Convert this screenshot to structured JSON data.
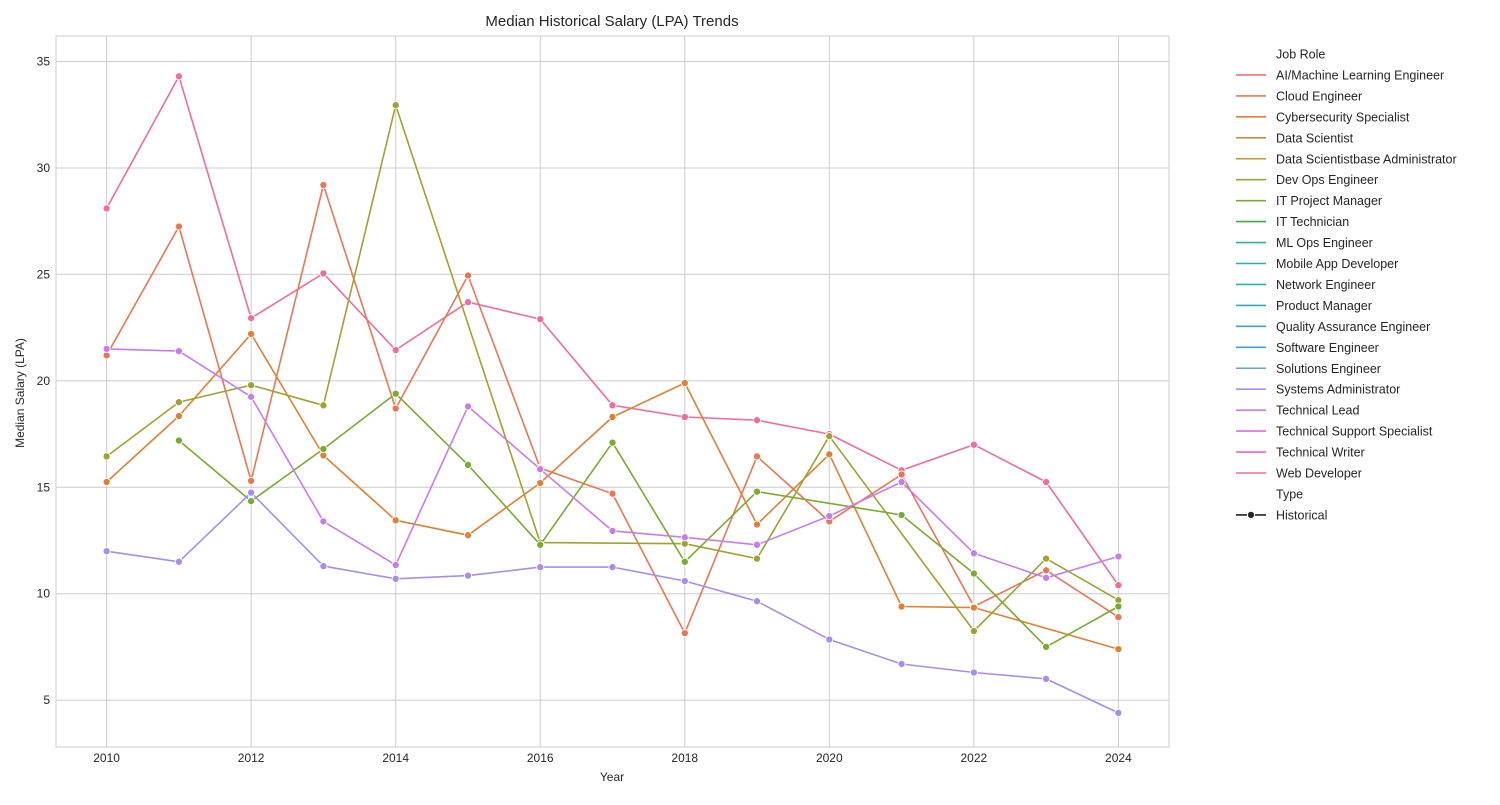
{
  "chart_data": {
    "type": "line",
    "title": "Median Historical Salary (LPA) Trends",
    "xlabel": "Year",
    "ylabel": "Median Salary (LPA)",
    "xlim": [
      2009.3,
      2024.7
    ],
    "ylim": [
      2.8,
      36.2
    ],
    "x_ticks": [
      2010,
      2012,
      2014,
      2016,
      2018,
      2020,
      2022,
      2024
    ],
    "y_ticks": [
      5,
      10,
      15,
      20,
      25,
      30,
      35
    ],
    "grid": true,
    "legend_position": "outside-right",
    "legend": {
      "hue_title": "Job Role",
      "entries": [
        {
          "label": "AI/Machine Learning Engineer",
          "color": "#f0727d"
        },
        {
          "label": "Cloud Engineer",
          "color": "#ea7656"
        },
        {
          "label": "Cybersecurity Specialist",
          "color": "#e08035"
        },
        {
          "label": "Data Scientist",
          "color": "#c99034"
        },
        {
          "label": "Data Scientistbase Administrator",
          "color": "#b59a31"
        },
        {
          "label": "Dev Ops Engineer",
          "color": "#9da330"
        },
        {
          "label": "IT Project Manager",
          "color": "#78ab30"
        },
        {
          "label": "IT Technician",
          "color": "#34b04e"
        },
        {
          "label": "ML Ops Engineer",
          "color": "#33b08c"
        },
        {
          "label": "Mobile App Developer",
          "color": "#35ad9f"
        },
        {
          "label": "Network Engineer",
          "color": "#37abad"
        },
        {
          "label": "Product Manager",
          "color": "#38a9ba"
        },
        {
          "label": "Quality Assurance Engineer",
          "color": "#3aa6c8"
        },
        {
          "label": "Software Engineer",
          "color": "#3ba2dc"
        },
        {
          "label": "Solutions Engineer",
          "color": "#6e9ae0"
        },
        {
          "label": "Systems Administrator",
          "color": "#a48fef"
        },
        {
          "label": "Technical Lead",
          "color": "#c57ee9"
        },
        {
          "label": "Technical Support Specialist",
          "color": "#e16ae0"
        },
        {
          "label": "Technical Writer",
          "color": "#ec67b8"
        },
        {
          "label": "Web Developer",
          "color": "#f16c99"
        }
      ],
      "style_title": "Type",
      "style_entries": [
        {
          "label": "Historical",
          "color": "#262626"
        }
      ]
    },
    "series": [
      {
        "name": "Web Developer",
        "color": "#f16c99",
        "points": [
          [
            2010,
            28.1
          ],
          [
            2011,
            34.3
          ],
          [
            2012,
            22.95
          ],
          [
            2013,
            25.05
          ],
          [
            2014,
            21.45
          ],
          [
            2015,
            23.7
          ],
          [
            2016,
            22.9
          ],
          [
            2017,
            18.85
          ],
          [
            2018,
            18.3
          ],
          [
            2019,
            18.15
          ],
          [
            2020,
            17.5
          ],
          [
            2021,
            15.8
          ],
          [
            2022,
            17.0
          ],
          [
            2023,
            15.25
          ],
          [
            2024,
            10.4
          ]
        ]
      },
      {
        "name": "Cloud Engineer",
        "color": "#ea7656",
        "points": [
          [
            2010,
            21.2
          ],
          [
            2011,
            27.25
          ],
          [
            2012,
            15.3
          ],
          [
            2013,
            29.2
          ],
          [
            2014,
            18.7
          ],
          [
            2015,
            24.95
          ],
          [
            2016,
            15.9
          ],
          [
            2017,
            14.7
          ],
          [
            2018,
            8.15
          ],
          [
            2019,
            16.45
          ],
          [
            2020,
            13.4
          ],
          [
            2021,
            15.6
          ],
          [
            2022,
            9.4
          ],
          [
            2023,
            11.1
          ],
          [
            2024,
            8.9
          ]
        ]
      },
      {
        "name": "Cybersecurity Specialist",
        "color": "#e08035",
        "points": [
          [
            2010,
            15.25
          ],
          [
            2011,
            18.35
          ],
          [
            2012,
            22.2
          ],
          [
            2013,
            16.5
          ],
          [
            2014,
            13.45
          ],
          [
            2015,
            12.75
          ],
          [
            2016,
            15.2
          ],
          [
            2017,
            18.3
          ],
          [
            2018,
            19.9
          ],
          [
            2019,
            13.25
          ],
          [
            2020,
            16.55
          ],
          [
            2021,
            9.4
          ],
          [
            2022,
            9.35
          ],
          [
            2024,
            7.4
          ]
        ]
      },
      {
        "name": "Dev Ops Engineer",
        "color": "#9da330",
        "points": [
          [
            2010,
            16.45
          ],
          [
            2011,
            19.0
          ],
          [
            2012,
            19.8
          ],
          [
            2013,
            18.85
          ],
          [
            2014,
            32.95
          ],
          [
            2016,
            12.4
          ],
          [
            2018,
            12.35
          ],
          [
            2019,
            11.65
          ],
          [
            2020,
            17.4
          ],
          [
            2022,
            8.25
          ],
          [
            2023,
            11.65
          ],
          [
            2024,
            9.7
          ]
        ]
      },
      {
        "name": "IT Project Manager",
        "color": "#78ab30",
        "points": [
          [
            2011,
            17.2
          ],
          [
            2012,
            14.35
          ],
          [
            2013,
            16.8
          ],
          [
            2014,
            19.4
          ],
          [
            2015,
            16.05
          ],
          [
            2016,
            12.3
          ],
          [
            2017,
            17.1
          ],
          [
            2018,
            11.5
          ],
          [
            2019,
            14.8
          ],
          [
            2021,
            13.7
          ],
          [
            2022,
            10.95
          ],
          [
            2023,
            7.5
          ],
          [
            2024,
            9.4
          ]
        ]
      },
      {
        "name": "Systems Administrator",
        "color": "#a48fef",
        "points": [
          [
            2010,
            12.0
          ],
          [
            2011,
            11.5
          ],
          [
            2012,
            14.75
          ],
          [
            2013,
            11.3
          ],
          [
            2014,
            10.7
          ],
          [
            2015,
            10.85
          ],
          [
            2016,
            11.25
          ],
          [
            2017,
            11.25
          ],
          [
            2018,
            10.6
          ],
          [
            2019,
            9.65
          ],
          [
            2020,
            7.85
          ],
          [
            2021,
            6.7
          ],
          [
            2022,
            6.3
          ],
          [
            2023,
            6.0
          ],
          [
            2024,
            4.4
          ]
        ]
      },
      {
        "name": "Technical Lead",
        "color": "#c57ee9",
        "points": [
          [
            2010,
            21.5
          ],
          [
            2011,
            21.4
          ],
          [
            2012,
            19.25
          ],
          [
            2013,
            13.4
          ],
          [
            2014,
            11.35
          ],
          [
            2015,
            18.8
          ],
          [
            2016,
            15.85
          ],
          [
            2017,
            12.95
          ],
          [
            2018,
            12.65
          ],
          [
            2019,
            12.3
          ],
          [
            2020,
            13.65
          ],
          [
            2021,
            15.25
          ],
          [
            2022,
            11.9
          ],
          [
            2023,
            10.75
          ],
          [
            2024,
            11.75
          ]
        ]
      }
    ]
  }
}
